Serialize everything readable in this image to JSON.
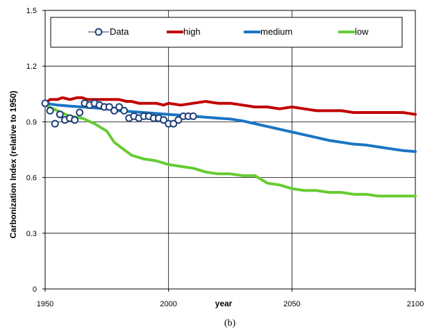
{
  "chart_data": {
    "type": "line",
    "xlabel": "year",
    "ylabel": "Carbonization Index (relative to 1950)",
    "caption": "(b)",
    "xlim": [
      1950,
      2100
    ],
    "ylim": [
      0,
      1.5
    ],
    "x_ticks": [
      "1950",
      "2000",
      "2050",
      "2100"
    ],
    "y_ticks": [
      "0",
      "0.3",
      "0.6",
      "0.9",
      "1.2",
      "1.5"
    ],
    "grid": true,
    "legend_position": "top",
    "series": [
      {
        "name": "Data",
        "style": "markers",
        "color": "#1f3f7a",
        "x": [
          1950,
          1952,
          1954,
          1956,
          1958,
          1960,
          1962,
          1964,
          1966,
          1968,
          1970,
          1972,
          1974,
          1976,
          1978,
          1980,
          1982,
          1984,
          1986,
          1988,
          1990,
          1992,
          1994,
          1996,
          1998,
          2000,
          2002,
          2004,
          2006,
          2008,
          2010
        ],
        "y": [
          1.0,
          0.96,
          0.89,
          0.94,
          0.91,
          0.92,
          0.91,
          0.95,
          1.0,
          0.99,
          1.0,
          0.99,
          0.98,
          0.98,
          0.96,
          0.98,
          0.96,
          0.92,
          0.93,
          0.92,
          0.93,
          0.93,
          0.92,
          0.92,
          0.91,
          0.89,
          0.89,
          0.91,
          0.93,
          0.93,
          0.93
        ]
      },
      {
        "name": "high",
        "style": "line",
        "color": "#c00000",
        "x": [
          1950,
          1952,
          1955,
          1957,
          1960,
          1963,
          1965,
          1967,
          1970,
          1973,
          1975,
          1978,
          1980,
          1983,
          1985,
          1988,
          1990,
          1993,
          1995,
          1998,
          2000,
          2005,
          2010,
          2015,
          2020,
          2025,
          2030,
          2035,
          2040,
          2045,
          2050,
          2055,
          2060,
          2065,
          2070,
          2075,
          2080,
          2085,
          2090,
          2095,
          2100
        ],
        "y": [
          1.0,
          1.02,
          1.02,
          1.03,
          1.02,
          1.03,
          1.03,
          1.02,
          1.02,
          1.02,
          1.02,
          1.02,
          1.02,
          1.01,
          1.01,
          1.0,
          1.0,
          1.0,
          1.0,
          0.99,
          1.0,
          0.99,
          1.0,
          1.01,
          1.0,
          1.0,
          0.99,
          0.98,
          0.98,
          0.97,
          0.98,
          0.97,
          0.96,
          0.96,
          0.96,
          0.95,
          0.95,
          0.95,
          0.95,
          0.95,
          0.94
        ]
      },
      {
        "name": "medium",
        "style": "line",
        "color": "#1a75c2",
        "x": [
          1950,
          1955,
          1960,
          1965,
          1970,
          1975,
          1980,
          1985,
          1990,
          1995,
          2000,
          2005,
          2010,
          2015,
          2020,
          2025,
          2030,
          2035,
          2040,
          2045,
          2050,
          2055,
          2060,
          2065,
          2070,
          2075,
          2080,
          2085,
          2090,
          2095,
          2100
        ],
        "y": [
          1.0,
          0.99,
          0.985,
          0.98,
          0.975,
          0.97,
          0.96,
          0.955,
          0.95,
          0.945,
          0.94,
          0.935,
          0.93,
          0.925,
          0.92,
          0.915,
          0.905,
          0.89,
          0.875,
          0.86,
          0.845,
          0.83,
          0.815,
          0.8,
          0.79,
          0.78,
          0.775,
          0.765,
          0.755,
          0.745,
          0.74
        ]
      },
      {
        "name": "low",
        "style": "line",
        "color": "#66cc33",
        "x": [
          1950,
          1955,
          1960,
          1965,
          1970,
          1975,
          1978,
          1980,
          1985,
          1990,
          1995,
          2000,
          2005,
          2010,
          2015,
          2020,
          2025,
          2030,
          2035,
          2040,
          2045,
          2050,
          2055,
          2060,
          2065,
          2070,
          2075,
          2080,
          2085,
          2090,
          2095,
          2100
        ],
        "y": [
          0.99,
          0.96,
          0.93,
          0.92,
          0.89,
          0.85,
          0.79,
          0.77,
          0.72,
          0.7,
          0.69,
          0.67,
          0.66,
          0.65,
          0.63,
          0.62,
          0.62,
          0.61,
          0.61,
          0.57,
          0.56,
          0.54,
          0.53,
          0.53,
          0.52,
          0.52,
          0.51,
          0.51,
          0.5,
          0.5,
          0.5,
          0.5
        ]
      }
    ]
  }
}
